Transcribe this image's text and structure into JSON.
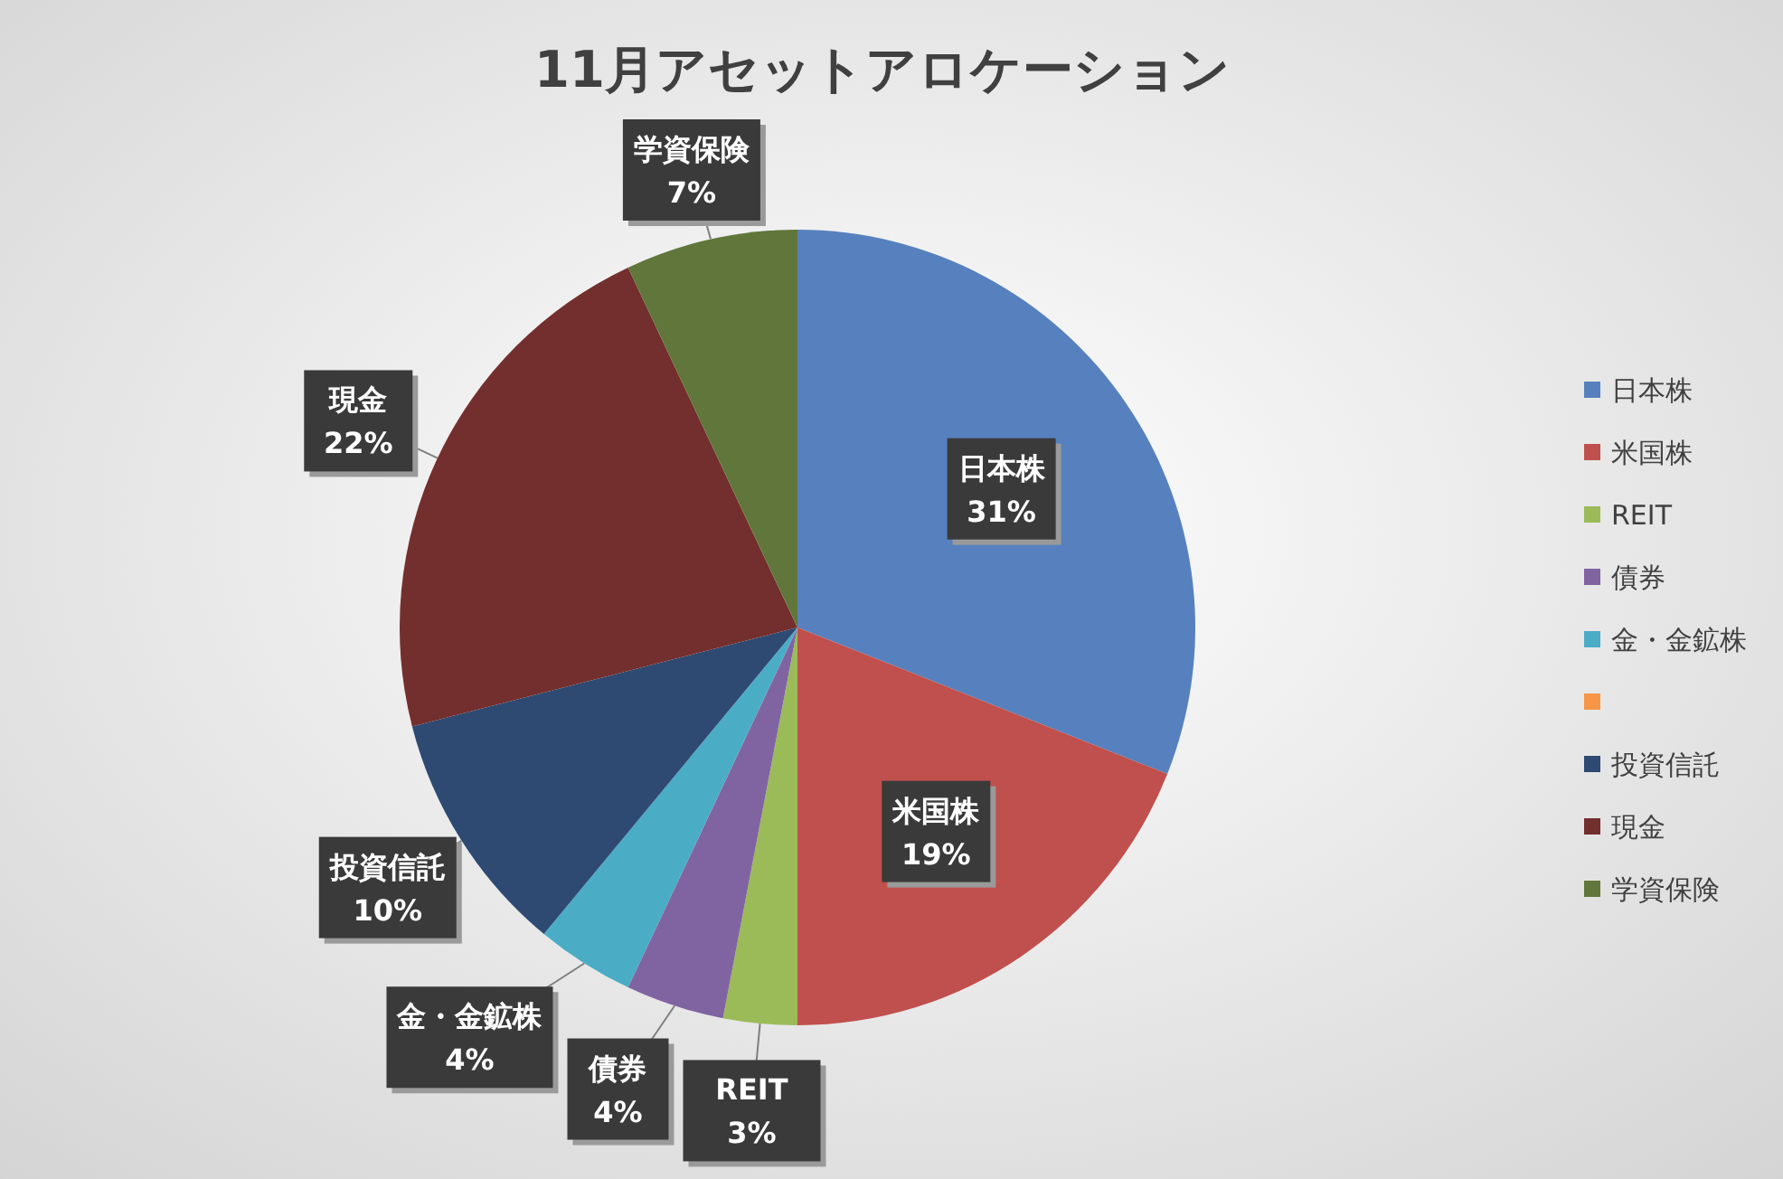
{
  "chart_data": {
    "type": "pie",
    "title": "11月アセットアロケーション",
    "categories": [
      "日本株",
      "米国株",
      "REIT",
      "債券",
      "金・金鉱株",
      null,
      "投資信託",
      "現金",
      "学資保険"
    ],
    "values": [
      31,
      19,
      3,
      4,
      4,
      0,
      10,
      22,
      7
    ],
    "colors": [
      "#5681be",
      "#c0504d",
      "#9bbb59",
      "#8064a2",
      "#4bacc6",
      "#f79646",
      "#2e4a72",
      "#732f2e",
      "#61763a"
    ],
    "value_labels": [
      "31%",
      "19%",
      "3%",
      "4%",
      "4%",
      null,
      "10%",
      "22%",
      "7%"
    ],
    "legend": "right"
  }
}
